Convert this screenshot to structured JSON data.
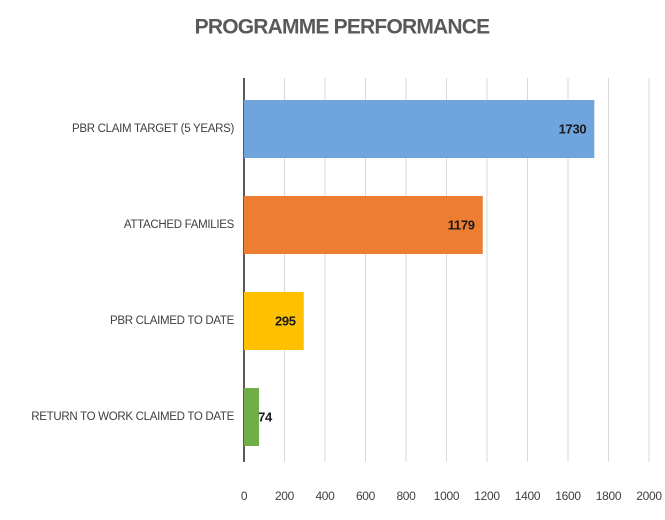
{
  "chart_data": {
    "type": "bar",
    "orientation": "horizontal",
    "title": "PROGRAMME PERFORMANCE",
    "categories": [
      "PBR CLAIM TARGET (5 YEARS)",
      "ATTACHED FAMILIES",
      "PBR CLAIMED TO DATE",
      "RETURN TO WORK CLAIMED TO DATE"
    ],
    "values": [
      1730,
      1179,
      295,
      74
    ],
    "colors": [
      "#6fa5dc",
      "#ed7d31",
      "#ffc000",
      "#70ad47"
    ],
    "xlim": [
      0,
      2000
    ],
    "xticks": [
      0,
      200,
      400,
      600,
      800,
      1000,
      1200,
      1400,
      1600,
      1800,
      2000
    ],
    "grid": true
  }
}
